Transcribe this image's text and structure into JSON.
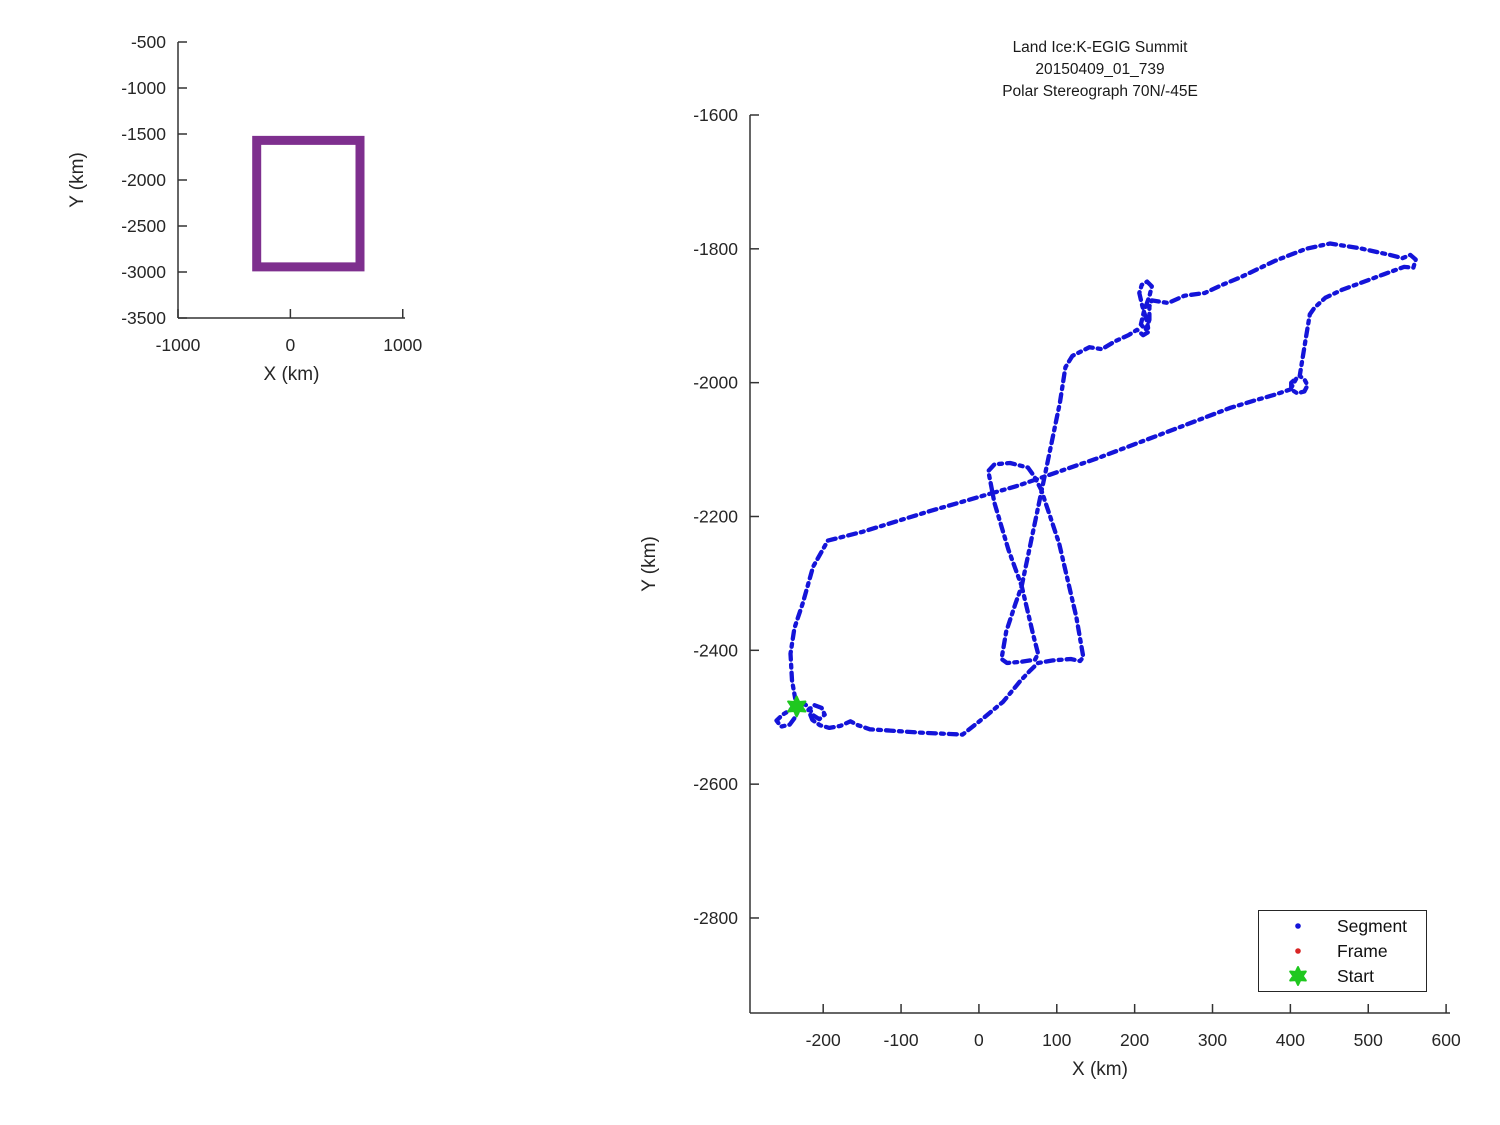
{
  "figure": {
    "background": "#ffffff",
    "axis_color": "#333333",
    "text_color": "#262626"
  },
  "chart_data": [
    {
      "id": "overview",
      "type": "line",
      "xlabel": "X (km)",
      "ylabel": "Y (km)",
      "xlim": [
        -1000,
        1020
      ],
      "ylim": [
        -3500,
        -500
      ],
      "xticks": [
        -1000,
        0,
        1000
      ],
      "yticks": [
        -500,
        -1000,
        -1500,
        -2000,
        -2500,
        -3000,
        -3500
      ],
      "grid": false,
      "series": [
        {
          "name": "coverage-box",
          "color": "#7e2f8e",
          "closed": true,
          "line_width": 9,
          "points": [
            [
              -300,
              -1570
            ],
            [
              620,
              -1570
            ],
            [
              620,
              -2945
            ],
            [
              -300,
              -2945
            ]
          ]
        }
      ]
    },
    {
      "id": "flight-track",
      "type": "line",
      "title": [
        "Land Ice:K-EGIG Summit",
        "20150409_01_739",
        "Polar Stereograph 70N/-45E"
      ],
      "xlabel": "X (km)",
      "ylabel": "Y (km)",
      "xlim": [
        -294,
        605
      ],
      "ylim": [
        -2942,
        -1600
      ],
      "xticks": [
        -200,
        -100,
        0,
        100,
        200,
        300,
        400,
        500,
        600
      ],
      "yticks": [
        -1600,
        -1800,
        -2000,
        -2200,
        -2400,
        -2600,
        -2800
      ],
      "grid": false,
      "track_color": "#1414d9",
      "track": [
        [
          -236,
          -2479
        ],
        [
          -242,
          -2489
        ],
        [
          -252,
          -2496
        ],
        [
          -260,
          -2505
        ],
        [
          -254,
          -2514
        ],
        [
          -243,
          -2511
        ],
        [
          -236,
          -2500
        ],
        [
          -231,
          -2487
        ],
        [
          -225,
          -2479
        ],
        [
          -218,
          -2486
        ],
        [
          -213,
          -2497
        ],
        [
          -205,
          -2503
        ],
        [
          -198,
          -2496
        ],
        [
          -202,
          -2486
        ],
        [
          -211,
          -2482
        ],
        [
          -219,
          -2489
        ],
        [
          -214,
          -2504
        ],
        [
          -204,
          -2512
        ],
        [
          -192,
          -2516
        ],
        [
          -178,
          -2513
        ],
        [
          -165,
          -2506
        ],
        [
          -155,
          -2512
        ],
        [
          -140,
          -2518
        ],
        [
          -114,
          -2520
        ],
        [
          -76,
          -2523
        ],
        [
          -37,
          -2525
        ],
        [
          -21,
          -2526
        ],
        [
          5,
          -2502
        ],
        [
          31,
          -2477
        ],
        [
          53,
          -2446
        ],
        [
          66,
          -2430
        ],
        [
          76,
          -2419
        ],
        [
          95,
          -2415
        ],
        [
          118,
          -2413
        ],
        [
          130,
          -2416
        ],
        [
          134,
          -2410
        ],
        [
          125,
          -2350
        ],
        [
          103,
          -2240
        ],
        [
          80,
          -2160
        ],
        [
          71,
          -2140
        ],
        [
          63,
          -2127
        ],
        [
          40,
          -2120
        ],
        [
          20,
          -2122
        ],
        [
          12,
          -2132
        ],
        [
          20,
          -2180
        ],
        [
          38,
          -2250
        ],
        [
          55,
          -2304
        ],
        [
          70,
          -2378
        ],
        [
          76,
          -2405
        ],
        [
          72,
          -2414
        ],
        [
          55,
          -2417
        ],
        [
          36,
          -2419
        ],
        [
          29,
          -2413
        ],
        [
          35,
          -2372
        ],
        [
          47,
          -2330
        ],
        [
          55,
          -2304
        ],
        [
          70,
          -2220
        ],
        [
          88,
          -2120
        ],
        [
          104,
          -2030
        ],
        [
          111,
          -1977
        ],
        [
          120,
          -1960
        ],
        [
          142,
          -1947
        ],
        [
          158,
          -1950
        ],
        [
          175,
          -1938
        ],
        [
          192,
          -1929
        ],
        [
          203,
          -1921
        ],
        [
          211,
          -1929
        ],
        [
          218,
          -1924
        ],
        [
          216,
          -1909
        ],
        [
          210,
          -1886
        ],
        [
          206,
          -1866
        ],
        [
          209,
          -1854
        ],
        [
          216,
          -1849
        ],
        [
          222,
          -1856
        ],
        [
          219,
          -1871
        ],
        [
          212,
          -1893
        ],
        [
          208,
          -1913
        ],
        [
          214,
          -1921
        ],
        [
          219,
          -1906
        ],
        [
          219,
          -1886
        ],
        [
          222,
          -1877
        ],
        [
          243,
          -1881
        ],
        [
          264,
          -1870
        ],
        [
          290,
          -1866
        ],
        [
          312,
          -1854
        ],
        [
          335,
          -1843
        ],
        [
          380,
          -1818
        ],
        [
          420,
          -1800
        ],
        [
          451,
          -1792
        ],
        [
          489,
          -1799
        ],
        [
          528,
          -1809
        ],
        [
          544,
          -1814
        ],
        [
          554,
          -1809
        ],
        [
          561,
          -1816
        ],
        [
          558,
          -1828
        ],
        [
          546,
          -1827
        ],
        [
          520,
          -1838
        ],
        [
          490,
          -1851
        ],
        [
          467,
          -1861
        ],
        [
          445,
          -1873
        ],
        [
          431,
          -1888
        ],
        [
          425,
          -1898
        ],
        [
          420,
          -1932
        ],
        [
          415,
          -1968
        ],
        [
          412,
          -1990
        ],
        [
          418,
          -1995
        ],
        [
          422,
          -2004
        ],
        [
          418,
          -2013
        ],
        [
          409,
          -2016
        ],
        [
          401,
          -2010
        ],
        [
          401,
          -2000
        ],
        [
          408,
          -1993
        ],
        [
          400,
          -2010
        ],
        [
          380,
          -2018
        ],
        [
          350,
          -2028
        ],
        [
          322,
          -2038
        ],
        [
          250,
          -2070
        ],
        [
          150,
          -2114
        ],
        [
          50,
          -2154
        ],
        [
          -63,
          -2192
        ],
        [
          -150,
          -2223
        ],
        [
          -194,
          -2236
        ],
        [
          -213,
          -2275
        ],
        [
          -226,
          -2329
        ],
        [
          -237,
          -2367
        ],
        [
          -242,
          -2405
        ],
        [
          -240,
          -2445
        ],
        [
          -236,
          -2472
        ]
      ],
      "start_marker": {
        "x": -234,
        "y": -2484,
        "color": "#1fc81f"
      },
      "legend": {
        "items": [
          {
            "label": "Segment",
            "marker": "dot",
            "color": "#1414d9"
          },
          {
            "label": "Frame",
            "marker": "dot",
            "color": "#d92525"
          },
          {
            "label": "Start",
            "marker": "hexagram",
            "color": "#1fc81f"
          }
        ]
      }
    }
  ]
}
